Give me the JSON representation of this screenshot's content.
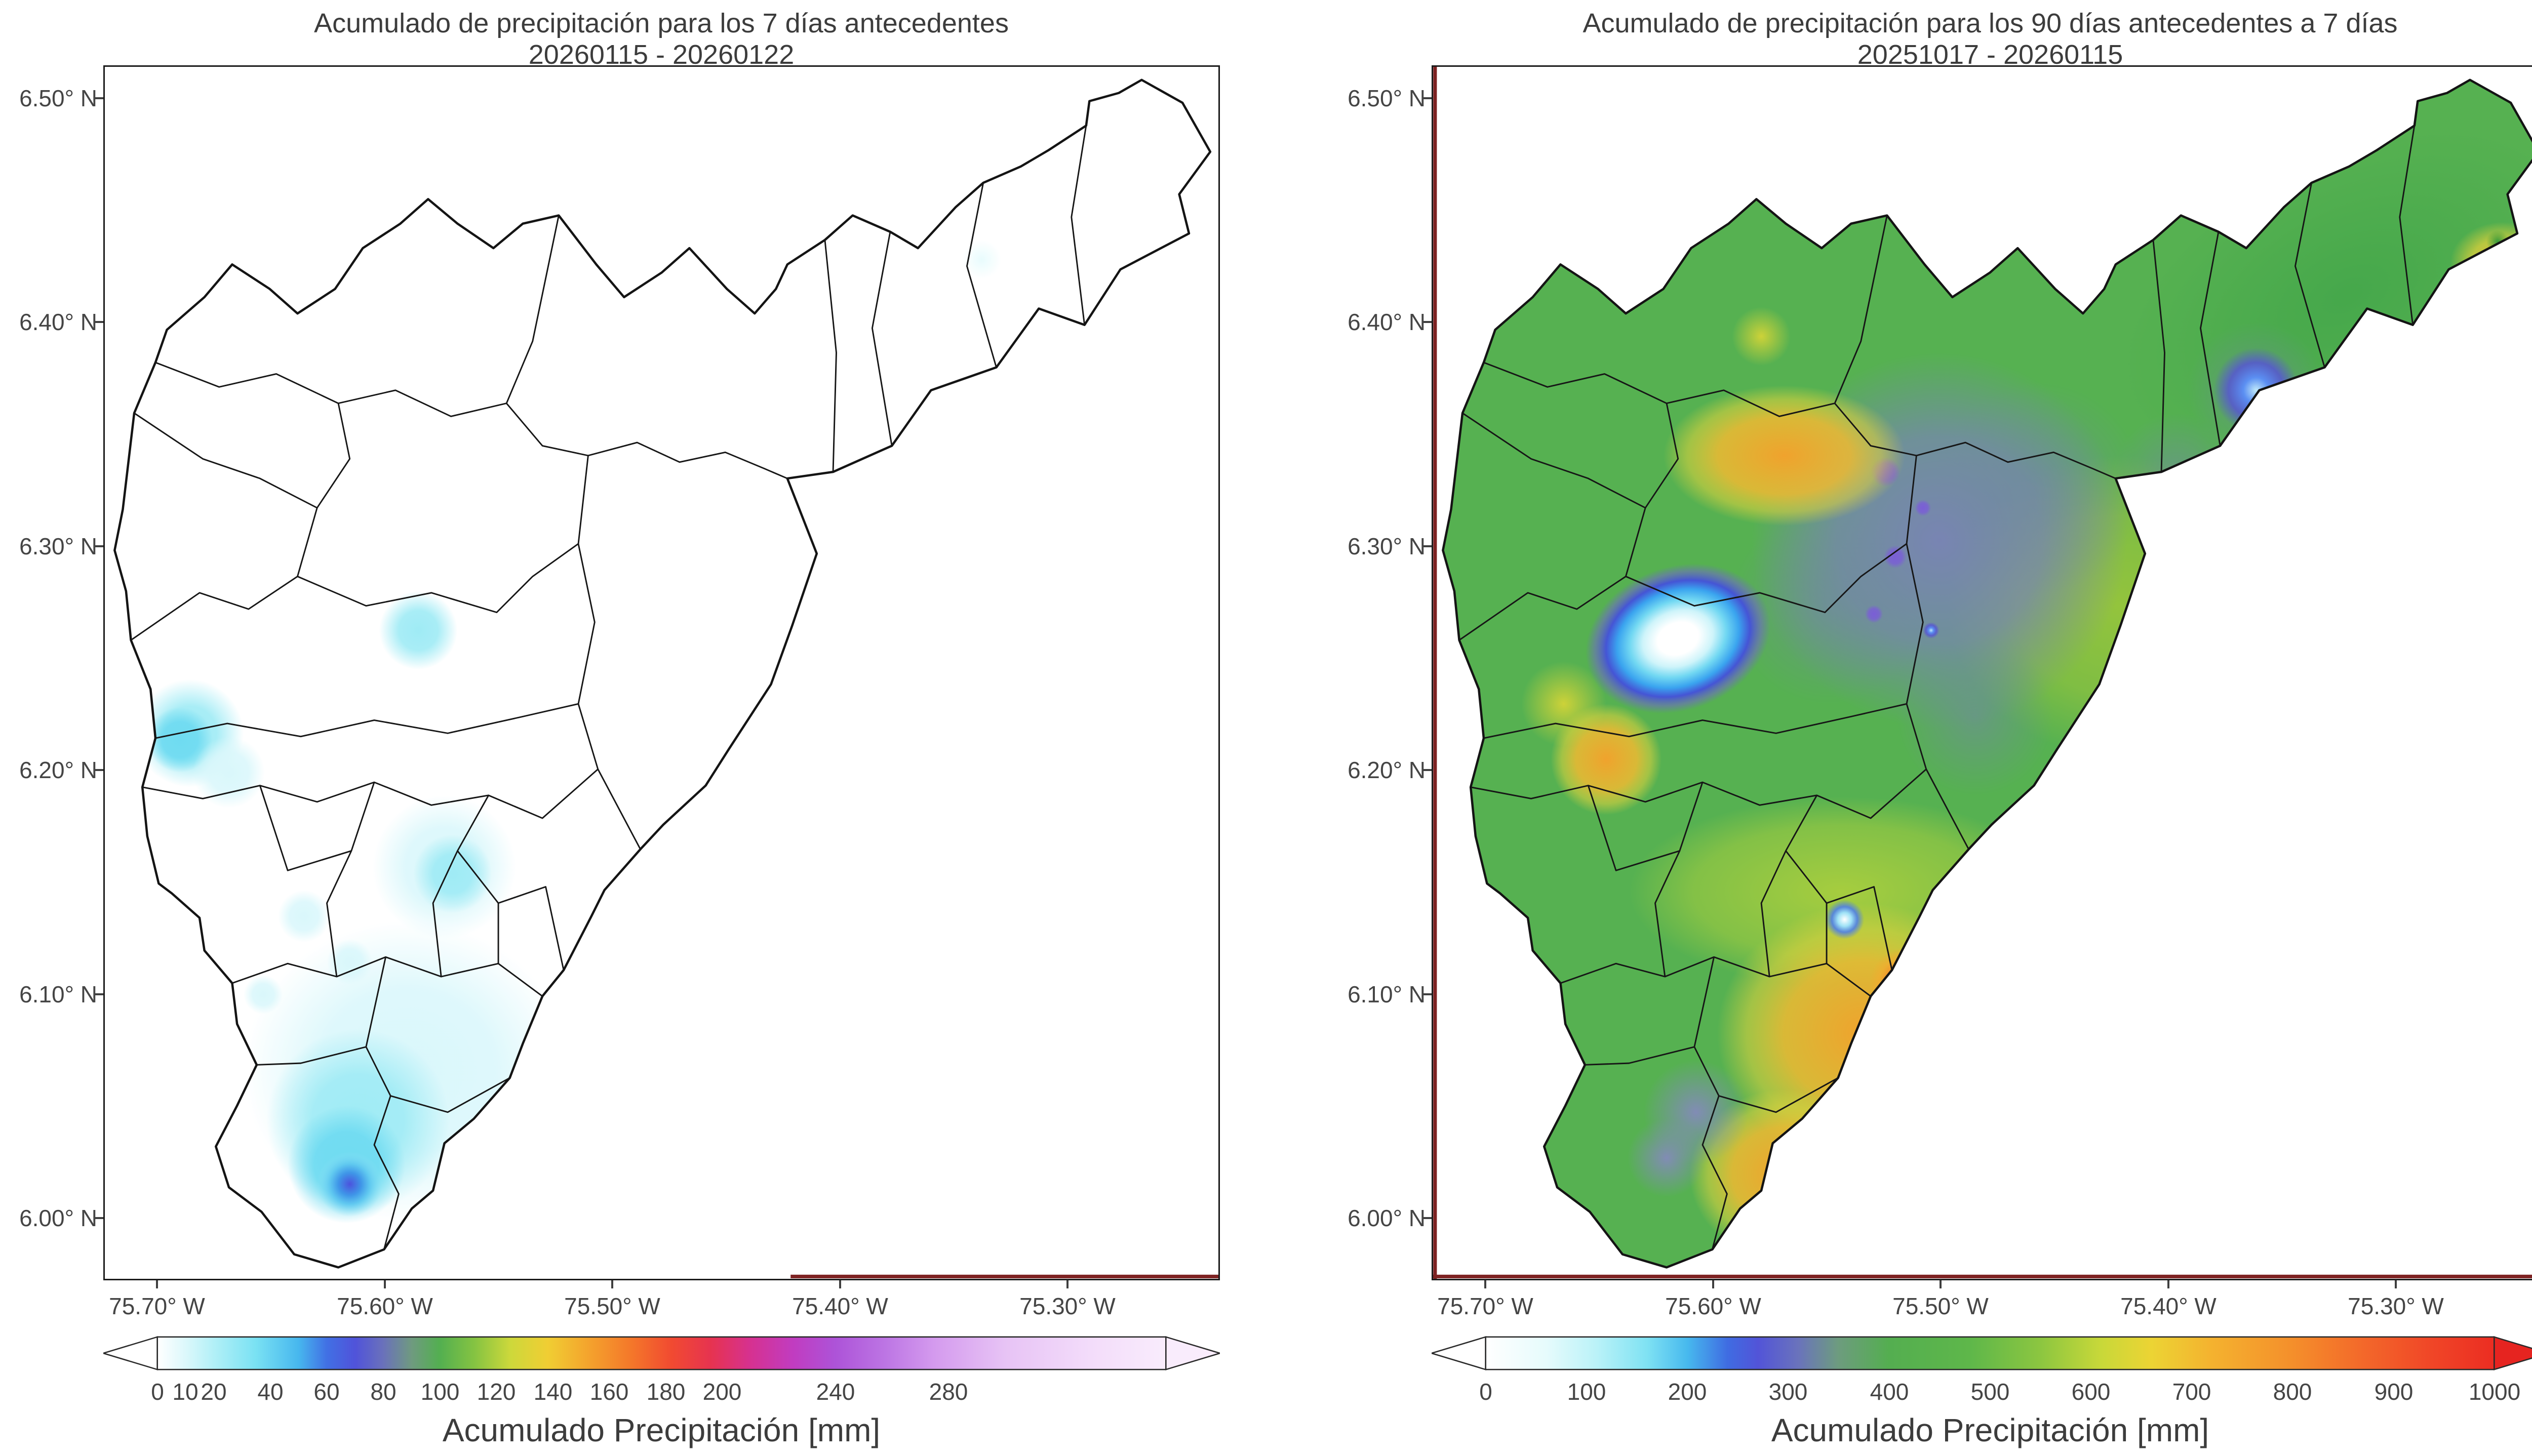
{
  "figure": {
    "type": "precipitation-accumulation-maps",
    "background": "#ffffff",
    "text_color": "#3c3c3c",
    "boundary_color": "#161616",
    "spine_accent": "#7e2222"
  },
  "panels": [
    {
      "title_line1": "Acumulado de precipitación para los 7 días antecedentes",
      "title_line2": "20260115 - 20260122",
      "y_tick_labels": [
        "6.50° N",
        "6.40° N",
        "6.30° N",
        "6.20° N",
        "6.10° N",
        "6.00° N"
      ],
      "x_tick_labels": [
        "75.70° W",
        "75.60° W",
        "75.50° W",
        "75.40° W",
        "75.30° W"
      ],
      "colorbar": {
        "label": "Acumulado Precipitación [mm]",
        "tick_labels": [
          "0",
          "10",
          "20",
          "40",
          "60",
          "80",
          "100",
          "120",
          "140",
          "160",
          "180",
          "200",
          "240",
          "280"
        ],
        "range_mm": [
          0,
          280
        ],
        "colors": [
          "#ffffff",
          "#aeeef6",
          "#47b7ee",
          "#5053da",
          "#6a71bb",
          "#53af50",
          "#cdd83b",
          "#f4a52d",
          "#f14a31",
          "#e63350",
          "#d63190",
          "#ad53d8",
          "#d49aee",
          "#f9ecfc"
        ]
      }
    },
    {
      "title_line1": "Acumulado de precipitación para los 90 días antecedentes a 7 días",
      "title_line2": "20251017 - 20260115",
      "y_tick_labels": [
        "6.50° N",
        "6.40° N",
        "6.30° N",
        "6.20° N",
        "6.10° N",
        "6.00° N"
      ],
      "x_tick_labels": [
        "75.70° W",
        "75.60° W",
        "75.50° W",
        "75.40° W",
        "75.30° W"
      ],
      "colorbar": {
        "label": "Acumulado Precipitación [mm]",
        "tick_labels": [
          "0",
          "100",
          "200",
          "300",
          "400",
          "500",
          "600",
          "700",
          "800",
          "900",
          "1000"
        ],
        "range_mm": [
          0,
          1000
        ],
        "colors": [
          "#ffffff",
          "#baf2f8",
          "#47b9ee",
          "#5254d8",
          "#6a73bc",
          "#54ae50",
          "#8cc640",
          "#ecd434",
          "#f4b22f",
          "#f3682a",
          "#eb2d22"
        ]
      }
    }
  ]
}
